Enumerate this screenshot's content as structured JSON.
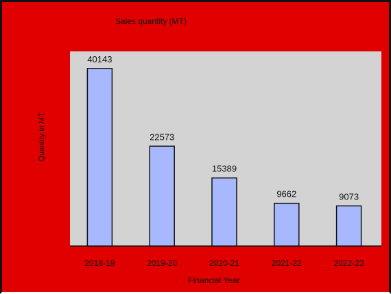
{
  "chart_data": {
    "type": "bar",
    "title": "Sales quantity (MT)",
    "xlabel": "Financial Year",
    "ylabel": "Quantity in MT",
    "categories": [
      "2018-19",
      "2019-20",
      "2020-21",
      "2021-22",
      "2022-23"
    ],
    "values": [
      40143,
      22573,
      15389,
      9662,
      9073
    ],
    "data_labels": [
      "40143",
      "22573",
      "15389",
      "9662",
      "9073"
    ],
    "ylim": [
      0,
      44000
    ],
    "grid": false,
    "legend": "none"
  },
  "colors": {
    "background": "#e00000",
    "plot_area": "#d3d3d3",
    "bar_fill": "#a8b8ff",
    "bar_stroke": "#111111",
    "text": "#111111"
  }
}
